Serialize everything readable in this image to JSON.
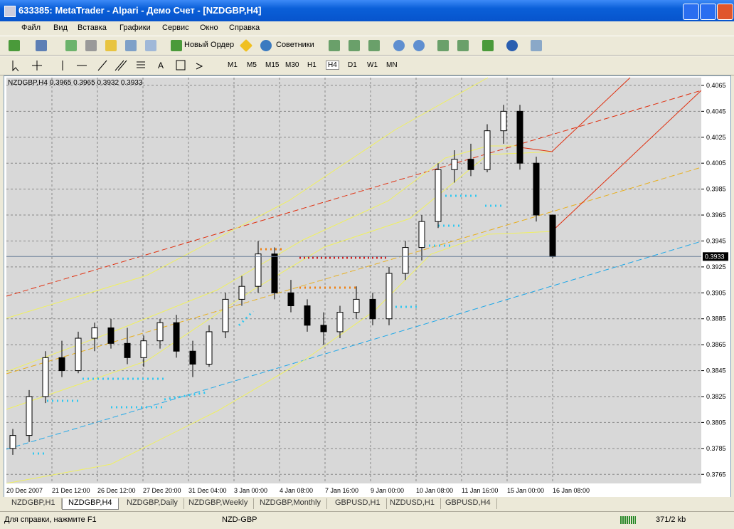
{
  "window": {
    "title": "633385: MetaTrader - Alpari - Демо Счет - [NZDGBP,H4]"
  },
  "menu": [
    "Файл",
    "Вид",
    "Вставка",
    "Графики",
    "Сервис",
    "Окно",
    "Справка"
  ],
  "toolbar": {
    "new_order": "Новый Ордер",
    "experts": "Советники",
    "text_tool": "A",
    "timeframes": [
      "M1",
      "M5",
      "M15",
      "M30",
      "H1",
      "H4",
      "D1",
      "W1",
      "MN"
    ]
  },
  "chart_data": {
    "type": "candlestick",
    "title": "NZDGBP,H4  0.3965 0.3965 0.3932 0.3933",
    "categories": [
      "20 Dec 2007",
      "21 Dec 12:00",
      "26 Dec 12:00",
      "27 Dec 20:00",
      "31 Dec 04:00",
      "3 Jan 00:00",
      "4 Jan 08:00",
      "7 Jan 16:00",
      "9 Jan 00:00",
      "10 Jan 08:00",
      "11 Jan 16:00",
      "15 Jan 00:00",
      "16 Jan 08:00"
    ],
    "ylim": [
      0.3758,
      0.4071
    ],
    "yticks": [
      0.4065,
      0.4045,
      0.4025,
      0.4005,
      0.3985,
      0.3965,
      0.3945,
      0.3925,
      0.3905,
      0.3885,
      0.3865,
      0.3845,
      0.3825,
      0.3805,
      0.3785,
      0.3765
    ],
    "current_price": 0.3933,
    "grid": true,
    "candles": [
      {
        "o": 0.3785,
        "h": 0.38,
        "l": 0.378,
        "c": 0.3795
      },
      {
        "o": 0.3795,
        "h": 0.383,
        "l": 0.379,
        "c": 0.3825
      },
      {
        "o": 0.3825,
        "h": 0.386,
        "l": 0.382,
        "c": 0.3855
      },
      {
        "o": 0.3855,
        "h": 0.3868,
        "l": 0.384,
        "c": 0.3845
      },
      {
        "o": 0.3845,
        "h": 0.3875,
        "l": 0.3843,
        "c": 0.387
      },
      {
        "o": 0.387,
        "h": 0.3882,
        "l": 0.386,
        "c": 0.3878
      },
      {
        "o": 0.3878,
        "h": 0.3885,
        "l": 0.3862,
        "c": 0.3866
      },
      {
        "o": 0.3866,
        "h": 0.3878,
        "l": 0.385,
        "c": 0.3855
      },
      {
        "o": 0.3855,
        "h": 0.3872,
        "l": 0.3848,
        "c": 0.3868
      },
      {
        "o": 0.3868,
        "h": 0.3885,
        "l": 0.3862,
        "c": 0.3882
      },
      {
        "o": 0.3882,
        "h": 0.3888,
        "l": 0.3855,
        "c": 0.386
      },
      {
        "o": 0.386,
        "h": 0.3868,
        "l": 0.384,
        "c": 0.385
      },
      {
        "o": 0.385,
        "h": 0.388,
        "l": 0.3848,
        "c": 0.3875
      },
      {
        "o": 0.3875,
        "h": 0.3905,
        "l": 0.387,
        "c": 0.39
      },
      {
        "o": 0.39,
        "h": 0.3918,
        "l": 0.3895,
        "c": 0.391
      },
      {
        "o": 0.391,
        "h": 0.3945,
        "l": 0.3905,
        "c": 0.3935
      },
      {
        "o": 0.3935,
        "h": 0.394,
        "l": 0.39,
        "c": 0.3905
      },
      {
        "o": 0.3905,
        "h": 0.3915,
        "l": 0.389,
        "c": 0.3895
      },
      {
        "o": 0.3895,
        "h": 0.39,
        "l": 0.3875,
        "c": 0.388
      },
      {
        "o": 0.388,
        "h": 0.389,
        "l": 0.3865,
        "c": 0.3875
      },
      {
        "o": 0.3875,
        "h": 0.3895,
        "l": 0.387,
        "c": 0.389
      },
      {
        "o": 0.389,
        "h": 0.391,
        "l": 0.3885,
        "c": 0.39
      },
      {
        "o": 0.39,
        "h": 0.3905,
        "l": 0.388,
        "c": 0.3885
      },
      {
        "o": 0.3885,
        "h": 0.3925,
        "l": 0.388,
        "c": 0.392
      },
      {
        "o": 0.392,
        "h": 0.3945,
        "l": 0.3915,
        "c": 0.394
      },
      {
        "o": 0.394,
        "h": 0.3965,
        "l": 0.393,
        "c": 0.396
      },
      {
        "o": 0.396,
        "h": 0.4005,
        "l": 0.3955,
        "c": 0.4
      },
      {
        "o": 0.4,
        "h": 0.4015,
        "l": 0.399,
        "c": 0.4008
      },
      {
        "o": 0.4008,
        "h": 0.402,
        "l": 0.3995,
        "c": 0.4
      },
      {
        "o": 0.4,
        "h": 0.4035,
        "l": 0.3998,
        "c": 0.403
      },
      {
        "o": 0.403,
        "h": 0.405,
        "l": 0.402,
        "c": 0.4045
      },
      {
        "o": 0.4045,
        "h": 0.405,
        "l": 0.4,
        "c": 0.4005
      },
      {
        "o": 0.4005,
        "h": 0.401,
        "l": 0.396,
        "c": 0.3965
      },
      {
        "o": 0.3965,
        "h": 0.3965,
        "l": 0.3932,
        "c": 0.3933
      }
    ]
  },
  "tabs": [
    "NZDGBP,H1",
    "NZDGBP,H4",
    "NZDGBP,Daily",
    "NZDGBP,Weekly",
    "NZDGBP,Monthly",
    "GBPUSD,H1",
    "NZDUSD,H1",
    "GBPUSD,H4"
  ],
  "status": {
    "help": "Для справки, нажмите F1",
    "profile": "NZD-GBP",
    "traffic": "371/2 kb"
  }
}
